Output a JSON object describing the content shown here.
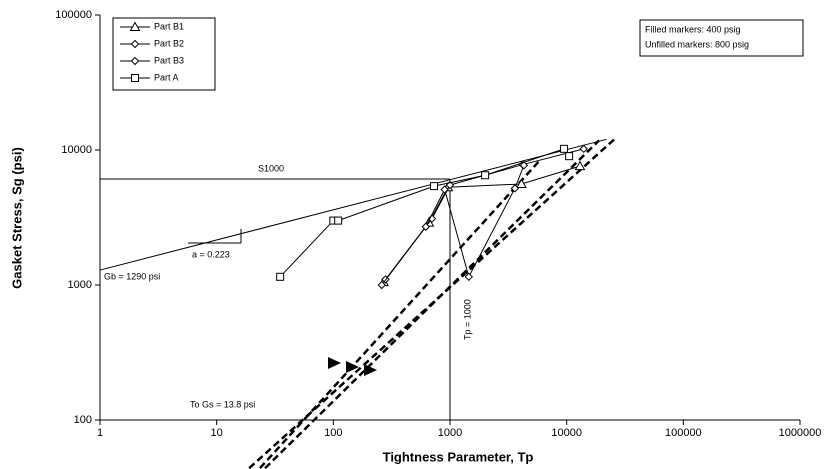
{
  "chart_data": {
    "type": "line",
    "x_label": "Tightness Parameter, Tp",
    "y_label": "Gasket Stress, Sg (psi)",
    "log_x": true,
    "log_y": true,
    "xlim": [
      1,
      1000000
    ],
    "xticks": [
      1,
      10,
      100,
      1000,
      10000,
      100000,
      1000000
    ],
    "ylim": [
      100,
      100000
    ],
    "yticks": [
      100,
      1000,
      10000,
      100000
    ],
    "series": [
      {
        "name": "Part B1",
        "marker": "triangle",
        "color": "#000000",
        "x": [
          270,
          660,
          960,
          4100,
          13000
        ],
        "y": [
          1050,
          2900,
          5300,
          5600,
          7600
        ]
      },
      {
        "name": "Part B2",
        "marker": "diamond",
        "color": "#000000",
        "x": [
          280,
          700,
          1000,
          4200,
          14000
        ],
        "y": [
          1100,
          3100,
          5500,
          7800,
          10200
        ]
      },
      {
        "name": "Part B3",
        "marker": "diamond",
        "color": "#000000",
        "x": [
          260,
          620,
          900,
          1450,
          3600,
          4300
        ],
        "y": [
          1000,
          2700,
          5100,
          1150,
          5200,
          7700
        ]
      },
      {
        "name": "Part A",
        "marker": "square",
        "color": "#000000",
        "x": [
          35,
          100,
          110,
          730,
          2000,
          9500,
          10500
        ],
        "y": [
          1150,
          3000,
          3000,
          5400,
          6500,
          10200,
          9000
        ]
      }
    ],
    "lines": [
      {
        "x": [
          1,
          22000
        ],
        "y": [
          1290,
          12000
        ],
        "style": "solid"
      },
      {
        "x": [
          1,
          1000
        ],
        "y": [
          6100,
          6100
        ],
        "style": "solid"
      },
      {
        "x": [
          1000,
          1000
        ],
        "y": [
          100,
          6100
        ],
        "style": "solid"
      },
      {
        "x": [
          23.5,
          5900
        ],
        "y": [
          44,
          8400
        ],
        "style": "dashed"
      },
      {
        "x": [
          26,
          19000
        ],
        "y": [
          44,
          11800
        ],
        "style": "dashed"
      },
      {
        "x": [
          19,
          27000
        ],
        "y": [
          44,
          12500
        ],
        "style": "dashed"
      }
    ],
    "annotations": [
      "S1000",
      "a = 0.223",
      "Gb = 1290 psi",
      "Tp = 1000",
      "To Gs = 13.8 psi"
    ],
    "notes": [
      "Filled markers: 400 psig",
      "Unfilled markers: 800 psig"
    ]
  }
}
